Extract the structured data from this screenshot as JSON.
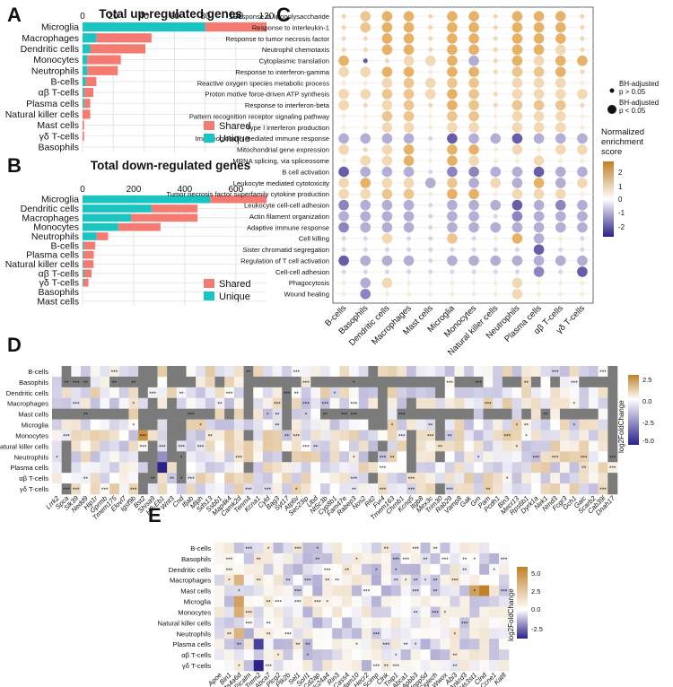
{
  "colors": {
    "shared": "#f47a72",
    "unique": "#19c4c1",
    "grid": "#e4e4e4",
    "gray": "#7a7a7a",
    "pos": "#c08028",
    "neg": "#2a2288",
    "mid": "#ffffff",
    "dot_pos": "#e2a24a",
    "dot_neg": "#4a3c9a"
  },
  "panels": {
    "A": {
      "letter": "A",
      "title": "Total up-regulated genes"
    },
    "B": {
      "letter": "B",
      "title": "Total down-regulated genes"
    },
    "C": {
      "letter": "C"
    },
    "D": {
      "letter": "D"
    },
    "E": {
      "letter": "E"
    }
  },
  "legend_ab": {
    "shared": "Shared",
    "unique": "Unique"
  },
  "legend_c": {
    "size_title": "",
    "size_small": "BH-adjusted p > 0.05",
    "size_large": "BH-adjusted p < 0.05",
    "color_title_1": "Normalized",
    "color_title_2": "enrichment",
    "color_title_3": "score",
    "ticks": [
      "2",
      "1",
      "0",
      "-1",
      "-2"
    ]
  },
  "legend_d": {
    "title": "log2FoldChange",
    "ticks": [
      "2.5",
      "0.0",
      "-2.5",
      "-5.0"
    ]
  },
  "legend_e": {
    "title": "log2FoldChange",
    "ticks": [
      "5.0",
      "2.5",
      "0.0",
      "-2.5"
    ]
  },
  "chart_data": [
    {
      "panel": "A",
      "type": "bar",
      "orientation": "horizontal",
      "stacked": true,
      "title": "Total up-regulated genes",
      "categories": [
        "Microglia",
        "Macrophages",
        "Dendritic cells",
        "Monocytes",
        "Neutrophils",
        "B-cells",
        "αβ T-cells",
        "Plasma cells",
        "Natural killer cells",
        "Mast cells",
        "γδ T-cells",
        "Basophils"
      ],
      "series": [
        {
          "name": "Unique",
          "values": [
            80,
            9,
            5,
            3,
            3,
            2,
            1,
            1,
            0,
            0,
            0,
            0
          ]
        },
        {
          "name": "Shared",
          "values": [
            40,
            36,
            36,
            22,
            20,
            7,
            6,
            4,
            5,
            1,
            1,
            0
          ]
        }
      ],
      "xlim": [
        0,
        120
      ],
      "xticks": [
        "0",
        "20",
        "40",
        "60",
        "80",
        "100",
        "120"
      ]
    },
    {
      "panel": "B",
      "type": "bar",
      "orientation": "horizontal",
      "stacked": true,
      "title": "Total down-regulated genes",
      "categories": [
        "Microglia",
        "Dendritic cells",
        "Macrophages",
        "Monocytes",
        "Neutrophils",
        "B-cells",
        "Plasma cells",
        "Natural killer cells",
        "αβ T-cells",
        "γδ T-cells",
        "Basophils",
        "Mast cells"
      ],
      "series": [
        {
          "name": "Unique",
          "values": [
            500,
            270,
            190,
            140,
            55,
            5,
            4,
            3,
            5,
            3,
            0,
            0
          ]
        },
        {
          "name": "Shared",
          "values": [
            220,
            180,
            260,
            165,
            45,
            45,
            40,
            40,
            30,
            20,
            0,
            0
          ]
        }
      ],
      "xlim": [
        0,
        720
      ],
      "xticks": [
        "0",
        "200",
        "400",
        "600"
      ]
    },
    {
      "panel": "C",
      "type": "scatter",
      "subtype": "dot-matrix",
      "pathways": [
        "Response to lipopolysaccharide",
        "Response to interleukin-1",
        "Response to tumor necrosis factor",
        "Neutrophil chemotaxis",
        "Cytoplasmic translation",
        "Response to interferon-gamma",
        "Reactive oxygen species metabolic process",
        "Proton motive force-driven ATP synthesis",
        "Response to interferon-beta",
        "Pattern recognition receptor signaling pathway",
        "Type I interferon production",
        "Immunoglobulin mediated immune response",
        "Mitochondrial gene expression",
        "MRNA splicing, via spliceosome",
        "B cell activation",
        "Leukocyte mediated cytotoxicity",
        "Tumor necrosis factor superfamily cytokine production",
        "Leukocyte cell-cell adhesion",
        "Actin filament organization",
        "Adaptive immune response",
        "Cell killing",
        "Sister chromatid segregation",
        "Regulation of T cell activation",
        "Cell-cell adhesion",
        "Phagocytosis",
        "Wound healing"
      ],
      "cell_types": [
        "B-cells",
        "Basophils",
        "Dendritic cells",
        "Macrophages",
        "Mast cells",
        "Microglia",
        "Monocytes",
        "Natural killer cells",
        "Neutrophils",
        "Plasma cells",
        "αβ T-cells",
        "γδ T-cells"
      ],
      "scores": [
        [
          1.0,
          1.5,
          2.0,
          2.0,
          1.0,
          2.0,
          2.0,
          1.0,
          2.0,
          2.0,
          2.0,
          1.0
        ],
        [
          1.0,
          1.5,
          2.0,
          2.0,
          1.0,
          2.0,
          2.0,
          1.0,
          2.0,
          2.0,
          2.0,
          1.0
        ],
        [
          1.0,
          1.0,
          2.0,
          2.0,
          1.0,
          2.0,
          2.0,
          1.0,
          2.0,
          2.0,
          2.0,
          1.0
        ],
        [
          1.0,
          1.0,
          2.0,
          2.0,
          1.0,
          2.0,
          2.0,
          1.0,
          2.0,
          2.0,
          1.0,
          1.0
        ],
        [
          2.0,
          -2.0,
          1.0,
          1.0,
          1.0,
          2.0,
          -1.0,
          1.0,
          2.0,
          1.0,
          2.0,
          2.0
        ],
        [
          1.0,
          1.0,
          2.0,
          2.0,
          0.5,
          2.0,
          2.0,
          1.0,
          1.5,
          1.5,
          2.0,
          1.0
        ],
        [
          0.5,
          0.5,
          1.0,
          1.5,
          1.0,
          1.5,
          1.5,
          0.5,
          1.0,
          1.0,
          1.0,
          0.5
        ],
        [
          1.0,
          1.0,
          1.5,
          1.5,
          1.0,
          2.0,
          1.5,
          1.0,
          1.0,
          1.0,
          1.0,
          1.0
        ],
        [
          1.0,
          1.0,
          1.0,
          1.5,
          1.0,
          2.0,
          1.5,
          1.0,
          1.5,
          1.5,
          1.5,
          1.0
        ],
        [
          0.5,
          0.5,
          1.5,
          1.5,
          0.5,
          1.5,
          1.5,
          0.5,
          1.0,
          1.0,
          1.0,
          0.5
        ],
        [
          0.5,
          0.5,
          1.0,
          1.0,
          0.5,
          1.0,
          1.0,
          0.5,
          1.0,
          1.0,
          1.0,
          0.5
        ],
        [
          -1.0,
          -1.0,
          -1.0,
          -1.0,
          -0.5,
          -2.0,
          -1.0,
          -1.0,
          -2.0,
          -1.0,
          -1.0,
          -1.0
        ],
        [
          1.0,
          1.0,
          1.0,
          2.0,
          0.5,
          2.0,
          2.0,
          0.5,
          1.0,
          0.5,
          1.0,
          1.0
        ],
        [
          0.5,
          1.0,
          1.0,
          2.0,
          0.5,
          2.0,
          1.0,
          0.5,
          0.5,
          1.0,
          0.5,
          0.5
        ],
        [
          -2.0,
          -1.0,
          -1.0,
          -1.0,
          -0.5,
          -1.5,
          -1.5,
          -1.0,
          -1.0,
          -2.0,
          -1.0,
          -1.0
        ],
        [
          1.0,
          2.0,
          1.0,
          1.0,
          -1.0,
          1.5,
          -1.0,
          1.0,
          -1.0,
          2.0,
          -1.0,
          1.0
        ],
        [
          1.0,
          1.0,
          1.5,
          1.5,
          0.5,
          2.0,
          2.0,
          0.5,
          1.0,
          1.0,
          1.0,
          0.5
        ],
        [
          -1.5,
          -1.0,
          -1.0,
          -1.0,
          -0.5,
          -1.0,
          -1.0,
          -1.0,
          -2.0,
          -1.0,
          -1.5,
          -1.0
        ],
        [
          -1.0,
          -1.0,
          -1.0,
          -1.0,
          -0.5,
          -1.0,
          -1.0,
          -0.5,
          -1.5,
          -1.0,
          -1.0,
          -1.0
        ],
        [
          -1.5,
          -1.0,
          -1.0,
          -1.0,
          -0.5,
          -1.0,
          -1.0,
          -1.0,
          -1.0,
          -1.0,
          -1.0,
          -1.0
        ],
        [
          -0.5,
          -0.5,
          1.0,
          -0.5,
          -0.5,
          1.5,
          -0.5,
          0.5,
          2.0,
          -1.0,
          0.5,
          -0.5
        ],
        [
          -0.5,
          -0.5,
          -0.5,
          -0.5,
          -0.5,
          -0.5,
          -0.5,
          -0.5,
          -0.5,
          -2.0,
          -0.5,
          -0.5
        ],
        [
          -2.0,
          -1.0,
          -1.0,
          -1.0,
          -0.5,
          -1.0,
          -1.0,
          -1.0,
          -1.0,
          -1.0,
          -1.0,
          -1.0
        ],
        [
          -0.5,
          -0.5,
          -0.5,
          -0.5,
          -0.5,
          -0.5,
          -0.5,
          -0.5,
          -0.5,
          -1.5,
          -0.5,
          -2.0
        ],
        [
          0.5,
          -1.0,
          1.0,
          0.5,
          0.5,
          0.5,
          0.5,
          0.5,
          1.0,
          0.5,
          0.5,
          0.5
        ],
        [
          0.5,
          -1.5,
          0.5,
          0.5,
          0.5,
          0.5,
          0.5,
          0.5,
          1.0,
          0.5,
          0.5,
          0.5
        ]
      ],
      "significant": [
        [
          0,
          1,
          1,
          1,
          0,
          1,
          1,
          0,
          1,
          1,
          1,
          0
        ],
        [
          0,
          1,
          1,
          1,
          0,
          1,
          1,
          0,
          1,
          1,
          1,
          0
        ],
        [
          0,
          0,
          1,
          1,
          0,
          1,
          1,
          0,
          1,
          1,
          1,
          0
        ],
        [
          0,
          0,
          1,
          1,
          0,
          1,
          1,
          0,
          1,
          1,
          1,
          0
        ],
        [
          1,
          0,
          0,
          1,
          1,
          1,
          1,
          0,
          1,
          1,
          1,
          1
        ],
        [
          1,
          1,
          1,
          1,
          0,
          1,
          1,
          0,
          1,
          1,
          1,
          0
        ],
        [
          0,
          0,
          1,
          1,
          1,
          1,
          1,
          0,
          1,
          1,
          1,
          0
        ],
        [
          1,
          1,
          1,
          1,
          1,
          1,
          1,
          0,
          1,
          1,
          1,
          1
        ],
        [
          1,
          0,
          1,
          1,
          0,
          1,
          1,
          0,
          1,
          1,
          1,
          0
        ],
        [
          0,
          0,
          1,
          1,
          0,
          1,
          1,
          0,
          1,
          1,
          1,
          0
        ],
        [
          0,
          0,
          1,
          1,
          0,
          1,
          1,
          0,
          1,
          1,
          1,
          0
        ],
        [
          1,
          1,
          1,
          1,
          0,
          1,
          1,
          1,
          1,
          1,
          1,
          1
        ],
        [
          1,
          0,
          1,
          1,
          0,
          1,
          1,
          0,
          1,
          0,
          1,
          1
        ],
        [
          0,
          1,
          1,
          1,
          0,
          1,
          1,
          0,
          0,
          1,
          0,
          0
        ],
        [
          1,
          1,
          1,
          1,
          0,
          1,
          1,
          1,
          1,
          1,
          1,
          1
        ],
        [
          1,
          1,
          1,
          1,
          1,
          1,
          1,
          1,
          1,
          1,
          1,
          1
        ],
        [
          1,
          1,
          1,
          1,
          0,
          1,
          1,
          0,
          1,
          1,
          1,
          0
        ],
        [
          1,
          1,
          1,
          1,
          0,
          1,
          1,
          1,
          1,
          1,
          1,
          1
        ],
        [
          1,
          1,
          1,
          1,
          0,
          1,
          1,
          0,
          1,
          1,
          1,
          1
        ],
        [
          1,
          1,
          1,
          1,
          0,
          1,
          1,
          1,
          1,
          1,
          1,
          1
        ],
        [
          0,
          0,
          1,
          0,
          0,
          1,
          0,
          0,
          1,
          1,
          0,
          0
        ],
        [
          0,
          0,
          0,
          0,
          0,
          0,
          0,
          0,
          0,
          1,
          0,
          0
        ],
        [
          1,
          1,
          1,
          1,
          0,
          1,
          1,
          1,
          1,
          1,
          1,
          1
        ],
        [
          0,
          0,
          0,
          0,
          0,
          0,
          0,
          0,
          0,
          1,
          0,
          1
        ],
        [
          0,
          1,
          1,
          0,
          0,
          0,
          0,
          0,
          1,
          0,
          0,
          0
        ],
        [
          0,
          1,
          0,
          0,
          0,
          0,
          0,
          0,
          1,
          0,
          0,
          0
        ]
      ],
      "size_legend": [
        "BH-adjusted p > 0.05",
        "BH-adjusted p < 0.05"
      ],
      "color_range": [
        -2,
        2
      ]
    },
    {
      "panel": "D",
      "type": "heatmap",
      "rows": [
        "B-cells",
        "Basophils",
        "Dendritic cells",
        "Macrophages",
        "Mast cells",
        "Microglia",
        "Monocytes",
        "Natural killer cells",
        "Neutrophils",
        "Plasma cells",
        "αβ T-cells",
        "γδ T-cells"
      ],
      "columns": [
        "Lrrk2",
        "Spca",
        "Slk39",
        "Nedd9",
        "Hip1r",
        "Gprmb",
        "Tmem175",
        "Elovl7",
        "Igsf9b",
        "Bst2",
        "Shisa9",
        "H2-Eb1",
        "Wnt3",
        "Cnd",
        "Ifjab",
        "Mlph",
        "Sds13",
        "Ssbb1",
        "Map4k4",
        "Camk2d",
        "Tenm4",
        "Kcna1",
        "Cyld",
        "Bag3",
        "Syt17",
        "Atp6v",
        "Sec23ip",
        "Ubd",
        "Nt5c3b",
        "Cyp8b1",
        "Fam47e",
        "Rabep3",
        "Nos2",
        "Rit2",
        "Fvr4",
        "Tmem163",
        "Chrnb1",
        "Kcnq5",
        "Itgb8",
        "Mex3c",
        "Trim30",
        "Rab29",
        "Vamp8",
        "Gak",
        "Grn",
        "Pam",
        "Pcdh1",
        "Bin3",
        "Mecr13",
        "Rps6b1",
        "Dyrk1a",
        "Nek1",
        "Nmd3",
        "Fcgr3",
        "Gch1",
        "Gaic",
        "Scarb2",
        "Cab39l",
        "Dnah17"
      ],
      "gray_columns": [
        1,
        9,
        10,
        12,
        13,
        20,
        24,
        33,
        34,
        37,
        40,
        58
      ],
      "color_range": [
        -5,
        3.5
      ]
    },
    {
      "panel": "E",
      "type": "heatmap",
      "rows": [
        "B-cells",
        "Basophils",
        "Dendritic cells",
        "Macrophages",
        "Mast cells",
        "Microglia",
        "Monocytes",
        "Natural killer cells",
        "Neutrophils",
        "Plasma cells",
        "αβ T-cells",
        "γδ T-cells"
      ],
      "columns": [
        "Apoe",
        "Bin1",
        "Ms4a6d",
        "Picalm",
        "Trem2",
        "Abca7",
        "Plcg2",
        "Ptk2b",
        "Sel1",
        "Sorl1",
        "Cd2ap",
        "Slc24a4",
        "Rin3",
        "Cass4",
        "Adam10",
        "Hecr2",
        "Scimp",
        "Clnk",
        "Tnip1",
        "Abca1",
        "Apbb3",
        "Inpp5d",
        "Siglech",
        "Wwox",
        "Abi3",
        "Ankrd3",
        "Hs3st1",
        "Clnd",
        "Ccne1",
        "Kat8"
      ],
      "gray_columns": [],
      "color_range": [
        -3.5,
        6
      ]
    }
  ]
}
